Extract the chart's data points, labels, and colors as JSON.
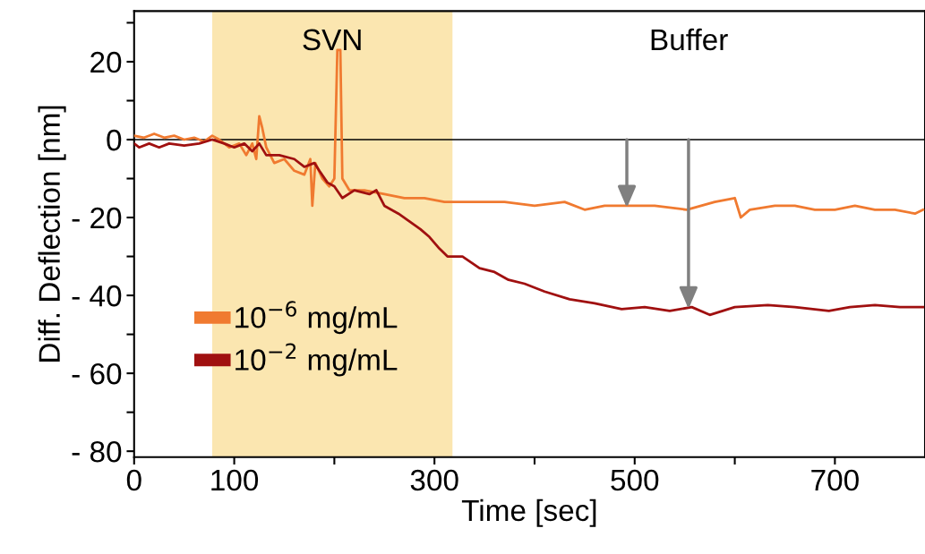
{
  "chart_data": {
    "type": "line",
    "xlabel": "Time [sec]",
    "ylabel": "Diff. Deflection [nm]",
    "xlim": [
      0,
      790
    ],
    "ylim": [
      -81.5,
      33
    ],
    "xticks": [
      0,
      100,
      {
        "value": 200,
        "label": null
      },
      300,
      {
        "value": 400,
        "label": null
      },
      500,
      {
        "value": 600,
        "label": null
      },
      700
    ],
    "yticks": [
      {
        "value": 30,
        "label": null
      },
      20,
      {
        "value": 10,
        "label": null
      },
      0,
      {
        "value": -10,
        "label": null
      },
      {
        "value": -20,
        "label": "- 20"
      },
      {
        "value": -30,
        "label": null
      },
      {
        "value": -40,
        "label": "- 40"
      },
      {
        "value": -50,
        "label": null
      },
      {
        "value": -60,
        "label": "- 60"
      },
      {
        "value": -70,
        "label": null
      },
      {
        "value": -80,
        "label": "- 80"
      }
    ],
    "grid": false,
    "legend": "bottom left",
    "bands": [
      {
        "axis": "x",
        "from": 78,
        "to": 318,
        "label": "SVN",
        "color": "#fbe6b0"
      }
    ],
    "ref_lines": [
      {
        "axis": "y",
        "value": 0,
        "color": "#000000"
      }
    ],
    "annotations": [
      "Buffer"
    ],
    "series": [
      {
        "name": "10$^{−6}$ mg/mL",
        "color": "#f07a30",
        "x": [
          0,
          10,
          20,
          30,
          40,
          50,
          60,
          70,
          78,
          85,
          95,
          105,
          112,
          118,
          122,
          125,
          128,
          132,
          140,
          150,
          160,
          170,
          176,
          178,
          181,
          188,
          195,
          200,
          203,
          206,
          208,
          215,
          230,
          250,
          270,
          290,
          310,
          340,
          370,
          400,
          430,
          450,
          470,
          492,
          520,
          552,
          580,
          600,
          606,
          615,
          640,
          660,
          680,
          700,
          720,
          740,
          760,
          780,
          788
        ],
        "values": [
          1,
          0.5,
          1.5,
          0.5,
          1,
          0,
          0.5,
          -0.5,
          1,
          0,
          -2,
          -1,
          -4,
          -1,
          -5,
          6,
          3,
          -2,
          -6,
          -5,
          -8,
          -9,
          -5,
          -17,
          -6,
          -10,
          -12,
          -10,
          23,
          23,
          -10,
          -13,
          -13,
          -14,
          -15,
          -15,
          -16,
          -16,
          -16,
          -17,
          -16,
          -18,
          -17,
          -17,
          -17,
          -18,
          -16,
          -15,
          -20,
          -18,
          -17,
          -17,
          -18,
          -18,
          -17,
          -18,
          -18,
          -19,
          -18
        ]
      },
      {
        "name": "10$^{−2}$ mg/mL",
        "color": "#a01010",
        "x": [
          0,
          5,
          15,
          25,
          35,
          50,
          65,
          78,
          90,
          100,
          110,
          118,
          125,
          132,
          145,
          160,
          170,
          180,
          185,
          193,
          200,
          208,
          220,
          235,
          242,
          250,
          264,
          275,
          286,
          295,
          305,
          313,
          328,
          345,
          360,
          374,
          390,
          410,
          435,
          460,
          487,
          510,
          535,
          557,
          575,
          600,
          633,
          660,
          694,
          715,
          740,
          765,
          788
        ],
        "values": [
          -1,
          -2,
          -1,
          -2,
          -1,
          -1.5,
          -1,
          0,
          -1,
          -2,
          -1,
          -3,
          -1,
          -4,
          -4,
          -5,
          -7,
          -6,
          -8,
          -11,
          -12,
          -15,
          -13,
          -14,
          -13,
          -17,
          -19,
          -21,
          -23,
          -25,
          -28,
          -30,
          -30,
          -33,
          -34,
          -36,
          -37,
          -39,
          -41,
          -42,
          -43.5,
          -43,
          -44,
          -43,
          -45,
          -43,
          -42.5,
          -43,
          -44,
          -43,
          -42.5,
          -43,
          -43
        ]
      }
    ]
  }
}
